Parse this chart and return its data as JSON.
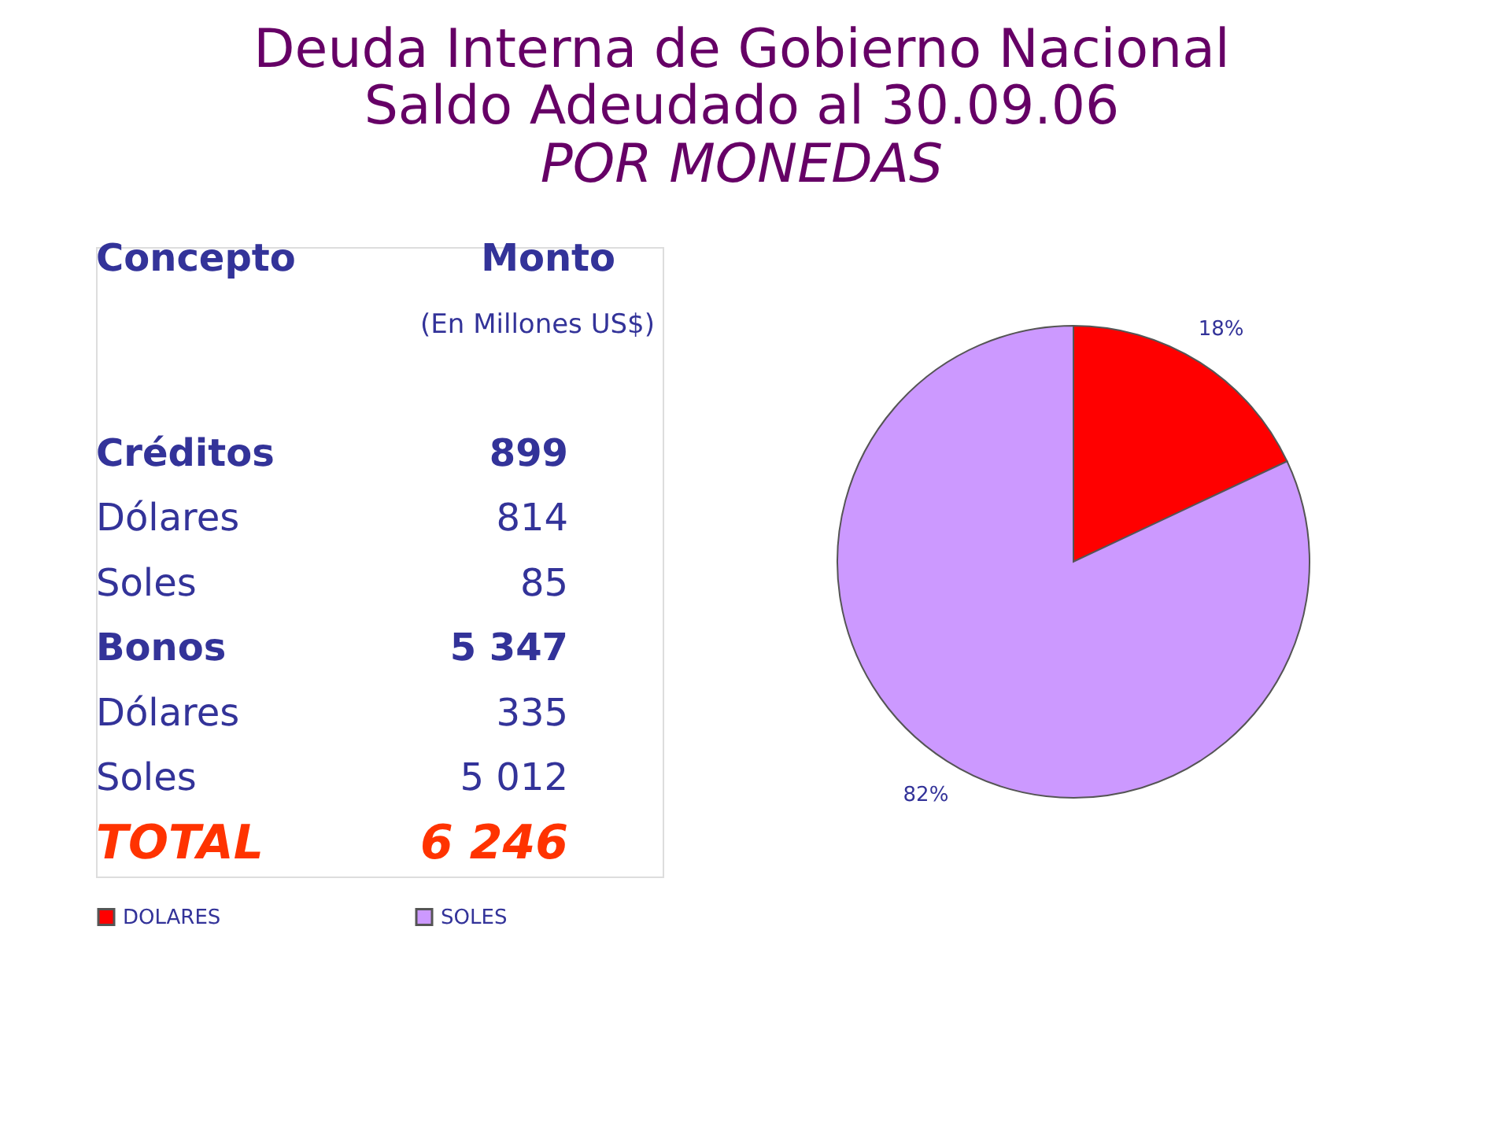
{
  "chart_data": [
    {
      "type": "other",
      "title": "Deuda Interna de Gobierno Nacional\nSaldo Adeudado al 30.09.06",
      "subtitle": "POR MONEDAS",
      "xlabel": "Concepto",
      "ylabel": "Monto",
      "annotations": [
        "(En Millones US$)"
      ],
      "categories": [
        "Créditos",
        "Dólares",
        "Soles",
        "Bonos",
        "Dólares",
        "Soles",
        "TOTAL"
      ],
      "values": [
        899,
        814,
        85,
        5347,
        335,
        5012,
        6246
      ],
      "value_labels": [
        "899",
        "814",
        "85",
        "5 347",
        "335",
        "5 012",
        "6  246"
      ]
    },
    {
      "type": "pie",
      "categories": [
        "DOLARES",
        "SOLES"
      ],
      "values": [
        18,
        82
      ],
      "colors": [
        "#ff0000",
        "#cc99ff"
      ],
      "value_labels": [
        "18%",
        "82%"
      ],
      "legend": "bottom"
    }
  ]
}
